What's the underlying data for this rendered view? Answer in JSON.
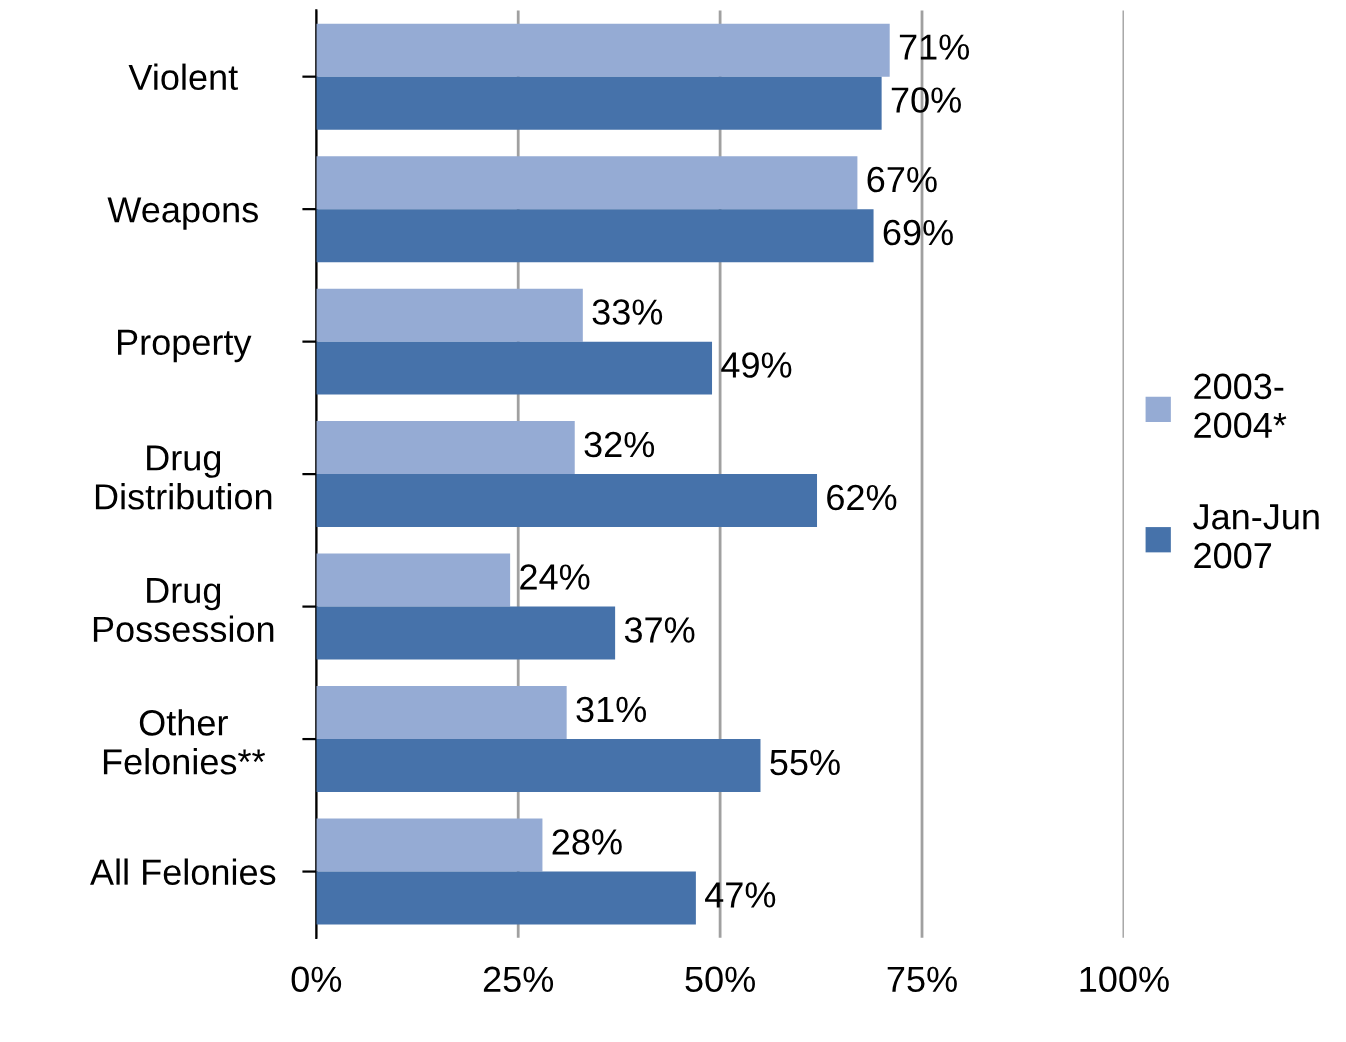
{
  "chart_data": {
    "type": "bar",
    "orientation": "horizontal",
    "categories": [
      "Violent",
      "Weapons",
      "Property",
      "Drug\nDistribution",
      "Drug\nPossession",
      "Other\nFelonies**",
      "All Felonies"
    ],
    "series": [
      {
        "name": "2003-\n2004*",
        "color": "#95abd4",
        "values": [
          71,
          67,
          33,
          32,
          24,
          31,
          28
        ],
        "value_labels": [
          "71%",
          "67%",
          "33%",
          "32%",
          "24%",
          "31%",
          "28%"
        ]
      },
      {
        "name": "Jan-Jun\n2007",
        "color": "#4672aa",
        "values": [
          70,
          69,
          49,
          62,
          37,
          55,
          47
        ],
        "value_labels": [
          "70%",
          "69%",
          "49%",
          "62%",
          "37%",
          "55%",
          "47%"
        ]
      }
    ],
    "xlim": [
      0,
      100
    ],
    "xticks": [
      {
        "value": 0,
        "label": "0%"
      },
      {
        "value": 25,
        "label": "25%"
      },
      {
        "value": 50,
        "label": "50%"
      },
      {
        "value": 75,
        "label": "75%"
      },
      {
        "value": 100,
        "label": "100%"
      }
    ],
    "grid": "x",
    "legend": "right"
  }
}
